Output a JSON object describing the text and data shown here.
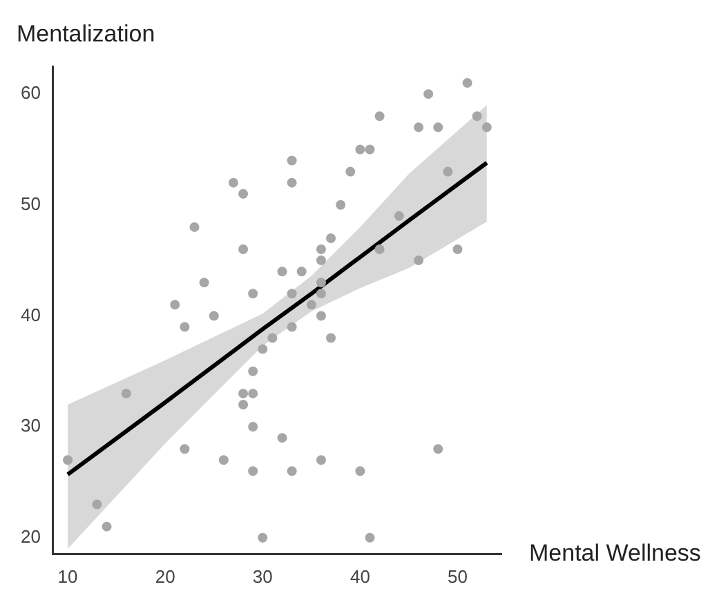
{
  "chart_data": {
    "type": "scatter",
    "xlabel": "Mental Wellness",
    "ylabel": "Mentalization",
    "xlim": [
      8.5,
      54.5
    ],
    "ylim": [
      18.5,
      62.5
    ],
    "xticks": [
      10,
      20,
      30,
      40,
      50
    ],
    "yticks": [
      20,
      30,
      40,
      50,
      60
    ],
    "grid": false,
    "legend": false,
    "marker": "circle",
    "series": [
      {
        "type": "scatter",
        "color": "#a6a6a6",
        "x": [
          10,
          13,
          14,
          16,
          21,
          22,
          22,
          23,
          24,
          25,
          26,
          27,
          28,
          28,
          28,
          28,
          29,
          29,
          29,
          29,
          29,
          30,
          30,
          31,
          32,
          32,
          33,
          33,
          33,
          33,
          33,
          34,
          35,
          36,
          36,
          36,
          36,
          36,
          36,
          37,
          37,
          38,
          39,
          40,
          40,
          41,
          41,
          42,
          42,
          44,
          46,
          46,
          47,
          48,
          48,
          49,
          50,
          51,
          52,
          53
        ],
        "values": [
          27,
          23,
          21,
          33,
          41,
          39,
          28,
          48,
          43,
          40,
          27,
          52,
          51,
          46,
          33,
          32,
          42,
          35,
          33,
          30,
          26,
          20,
          37,
          38,
          44,
          29,
          54,
          52,
          42,
          39,
          26,
          44,
          41,
          46,
          45,
          43,
          42,
          40,
          27,
          47,
          38,
          50,
          53,
          55,
          26,
          55,
          20,
          58,
          46,
          49,
          57,
          45,
          60,
          57,
          28,
          53,
          46,
          61,
          58,
          57
        ]
      },
      {
        "type": "line",
        "color": "#000000",
        "marker": "none",
        "x": [
          10,
          20,
          30,
          35,
          40,
          45,
          53
        ],
        "values": [
          25.7,
          32.2,
          38.8,
          42.0,
          45.3,
          48.6,
          53.8
        ],
        "lower": [
          19,
          28.5,
          37.3,
          40.4,
          42.5,
          44.3,
          48.5
        ],
        "upper": [
          32,
          36,
          40.2,
          43.6,
          48,
          52.8,
          59
        ]
      }
    ]
  }
}
